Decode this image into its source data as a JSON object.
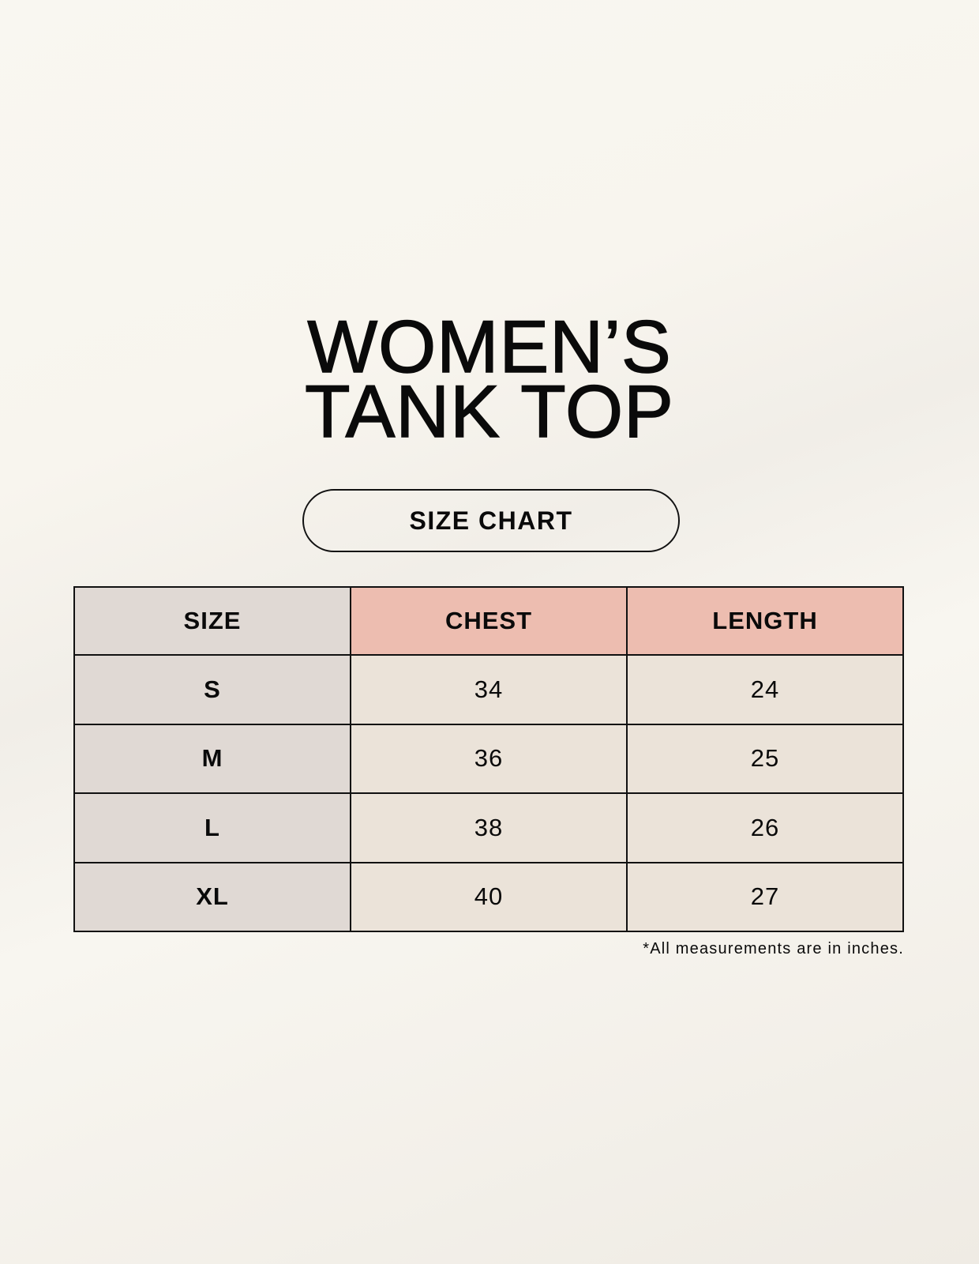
{
  "title": {
    "line1": "WOMEN’S",
    "line2": "TANK TOP"
  },
  "badge": "SIZE CHART",
  "table": {
    "headers": [
      "SIZE",
      "CHEST",
      "LENGTH"
    ],
    "rows": [
      [
        "S",
        "34",
        "24"
      ],
      [
        "M",
        "36",
        "25"
      ],
      [
        "L",
        "38",
        "26"
      ],
      [
        "XL",
        "40",
        "27"
      ]
    ]
  },
  "footnote": "*All measurements are in inches.",
  "colors": {
    "background": "#f8f6f0",
    "size_column": "#e0d9d4",
    "header_accent": "#edbdb0",
    "cell": "#ebe3d9"
  }
}
